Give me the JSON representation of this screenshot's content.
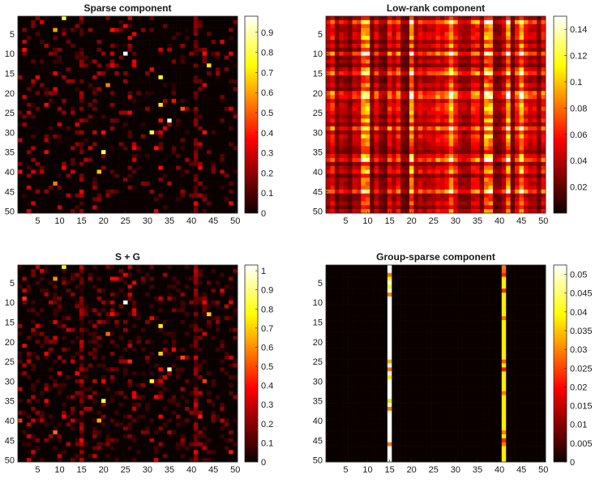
{
  "chart_data": [
    {
      "type": "heatmap",
      "title": "Sparse component",
      "xticks": [
        "5",
        "10",
        "15",
        "20",
        "25",
        "30",
        "35",
        "40",
        "45",
        "50"
      ],
      "yticks": [
        "5",
        "10",
        "15",
        "20",
        "25",
        "30",
        "35",
        "40",
        "45",
        "50"
      ],
      "colorbar_ticks": [
        "0",
        "0.1",
        "0.2",
        "0.3",
        "0.4",
        "0.5",
        "0.6",
        "0.7",
        "0.8",
        "0.9"
      ],
      "clim": [
        0,
        0.98
      ],
      "matrix_size": [
        50,
        50
      ],
      "colormap": "hot",
      "hot_columns": [
        {
          "col": 15,
          "level": 0.12
        },
        {
          "col": 41,
          "level": 0.1
        }
      ],
      "bright_cells": [
        {
          "row": 1,
          "col": 11,
          "value": 0.8
        },
        {
          "row": 4,
          "col": 9,
          "value": 0.6
        },
        {
          "row": 10,
          "col": 25,
          "value": 0.98
        },
        {
          "row": 13,
          "col": 44,
          "value": 0.7
        },
        {
          "row": 16,
          "col": 33,
          "value": 0.75
        },
        {
          "row": 18,
          "col": 21,
          "value": 0.55
        },
        {
          "row": 23,
          "col": 33,
          "value": 0.7
        },
        {
          "row": 24,
          "col": 38,
          "value": 0.5
        },
        {
          "row": 27,
          "col": 35,
          "value": 0.95
        },
        {
          "row": 30,
          "col": 31,
          "value": 0.8
        },
        {
          "row": 35,
          "col": 20,
          "value": 0.85
        },
        {
          "row": 40,
          "col": 19,
          "value": 0.65
        },
        {
          "row": 43,
          "col": 9,
          "value": 0.55
        }
      ]
    },
    {
      "type": "heatmap",
      "title": "Low-rank component",
      "xticks": [
        "5",
        "10",
        "15",
        "20",
        "25",
        "30",
        "35",
        "40",
        "45",
        "50"
      ],
      "yticks": [
        "5",
        "10",
        "15",
        "20",
        "25",
        "30",
        "35",
        "40",
        "45",
        "50"
      ],
      "colorbar_ticks": [
        "0.02",
        "0.04",
        "0.06",
        "0.08",
        "0.1",
        "0.12",
        "0.14"
      ],
      "clim": [
        0,
        0.15
      ],
      "matrix_size": [
        50,
        50
      ],
      "colormap": "hot",
      "rank_structure": "outer product of row and column profiles",
      "bright_columns": [
        9,
        10,
        20,
        29,
        37,
        38,
        42,
        45
      ],
      "bright_rows": [
        2,
        10,
        15,
        20,
        21,
        29,
        37,
        45
      ]
    },
    {
      "type": "heatmap",
      "title": "S + G",
      "xticks": [
        "5",
        "10",
        "15",
        "20",
        "25",
        "30",
        "35",
        "40",
        "45",
        "50"
      ],
      "yticks": [
        "5",
        "10",
        "15",
        "20",
        "25",
        "30",
        "35",
        "40",
        "45",
        "50"
      ],
      "colorbar_ticks": [
        "0",
        "0.1",
        "0.2",
        "0.3",
        "0.4",
        "0.5",
        "0.6",
        "0.7",
        "0.8",
        "0.9",
        "1"
      ],
      "clim": [
        0,
        1.03
      ],
      "matrix_size": [
        50,
        50
      ],
      "colormap": "hot",
      "composition": "sum of sparse and group-sparse components"
    },
    {
      "type": "heatmap",
      "title": "Group-sparse component",
      "xticks": [
        "5",
        "10",
        "15",
        "20",
        "25",
        "30",
        "35",
        "40",
        "45",
        "50"
      ],
      "yticks": [
        "5",
        "10",
        "15",
        "20",
        "25",
        "30",
        "35",
        "40",
        "45",
        "50"
      ],
      "colorbar_ticks": [
        "0",
        "0.005",
        "0.01",
        "0.015",
        "0.02",
        "0.025",
        "0.03",
        "0.035",
        "0.04",
        "0.045",
        "0.05"
      ],
      "clim": [
        0,
        0.0525
      ],
      "matrix_size": [
        50,
        50
      ],
      "colormap": "hot",
      "nonzero_columns": [
        {
          "col": 15,
          "typical_value": 0.052
        },
        {
          "col": 41,
          "typical_value": 0.038
        }
      ]
    }
  ]
}
